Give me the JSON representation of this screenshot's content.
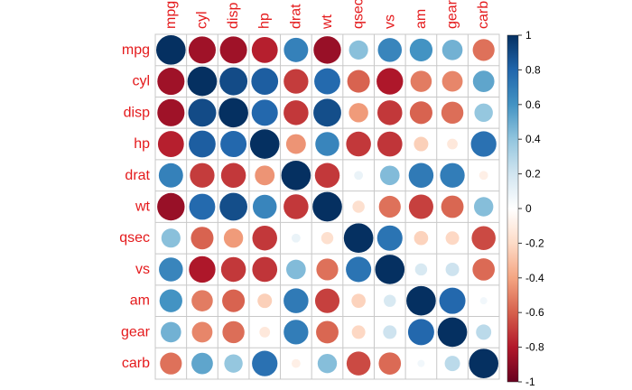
{
  "chart_data": {
    "type": "heatmap",
    "variables": [
      "mpg",
      "cyl",
      "disp",
      "hp",
      "drat",
      "wt",
      "qsec",
      "vs",
      "am",
      "gear",
      "carb"
    ],
    "matrix": [
      [
        1.0,
        -0.85,
        -0.85,
        -0.78,
        0.68,
        -0.87,
        0.42,
        0.66,
        0.6,
        0.48,
        -0.55
      ],
      [
        -0.85,
        1.0,
        0.9,
        0.83,
        -0.7,
        0.78,
        -0.59,
        -0.81,
        -0.52,
        -0.49,
        0.53
      ],
      [
        -0.85,
        0.9,
        1.0,
        0.79,
        -0.71,
        0.89,
        -0.43,
        -0.71,
        -0.59,
        -0.56,
        0.39
      ],
      [
        -0.78,
        0.83,
        0.79,
        1.0,
        -0.45,
        0.66,
        -0.71,
        -0.72,
        -0.24,
        -0.13,
        0.75
      ],
      [
        0.68,
        -0.7,
        -0.71,
        -0.45,
        1.0,
        -0.71,
        0.09,
        0.44,
        0.71,
        0.7,
        -0.09
      ],
      [
        -0.87,
        0.78,
        0.89,
        0.66,
        -0.71,
        1.0,
        -0.17,
        -0.55,
        -0.69,
        -0.58,
        0.43
      ],
      [
        0.42,
        -0.59,
        -0.43,
        -0.71,
        0.09,
        -0.17,
        1.0,
        0.74,
        -0.23,
        -0.21,
        -0.66
      ],
      [
        0.66,
        -0.81,
        -0.71,
        -0.72,
        0.44,
        -0.55,
        0.74,
        1.0,
        0.17,
        0.21,
        -0.57
      ],
      [
        0.6,
        -0.52,
        -0.59,
        -0.24,
        0.71,
        -0.69,
        -0.23,
        0.17,
        1.0,
        0.79,
        0.06
      ],
      [
        0.48,
        -0.49,
        -0.56,
        -0.13,
        0.7,
        -0.58,
        -0.21,
        0.21,
        0.79,
        1.0,
        0.27
      ],
      [
        -0.55,
        0.53,
        0.39,
        0.75,
        -0.09,
        0.43,
        -0.66,
        -0.57,
        0.06,
        0.27,
        1.0
      ]
    ],
    "colorbar": {
      "range": [
        -1,
        1
      ],
      "ticks": [
        "1",
        "0.8",
        "0.6",
        "0.4",
        "0.2",
        "0",
        "-0.2",
        "-0.4",
        "-0.6",
        "-0.8",
        "-1"
      ],
      "colors": [
        "#67001F",
        "#B2182B",
        "#D6604D",
        "#F4A582",
        "#FDDBC7",
        "#FFFFFF",
        "#D1E5F0",
        "#92C5DE",
        "#4393C3",
        "#2166AC",
        "#053061"
      ]
    },
    "label_color": "#E41A1C",
    "grid_color": "#C8C8C8"
  }
}
